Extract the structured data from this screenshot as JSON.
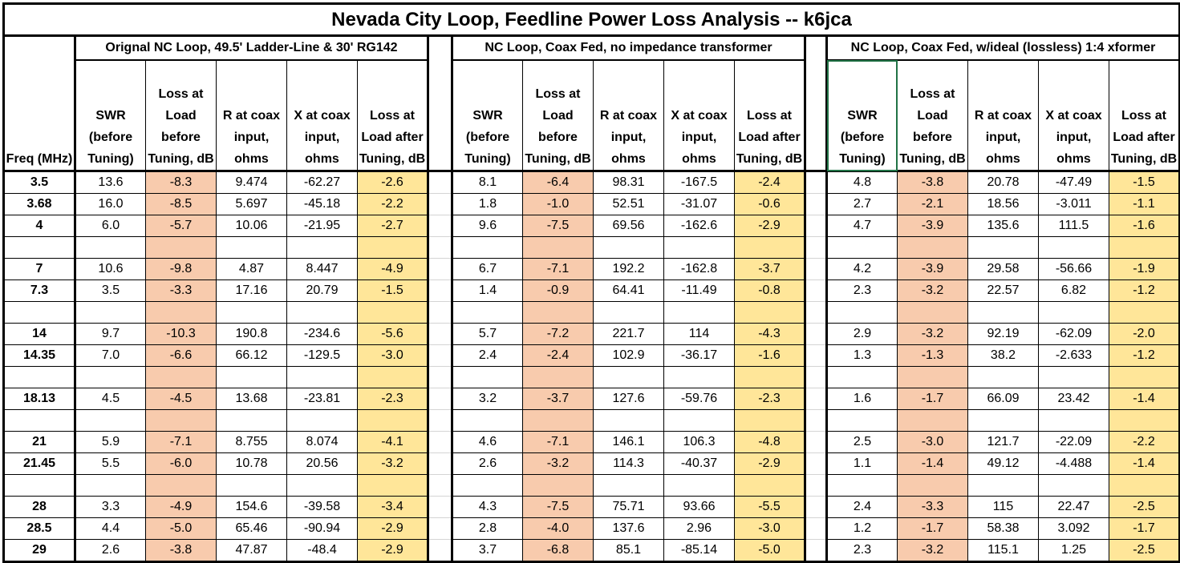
{
  "title": "Nevada City Loop, Feedline Power Loss Analysis  --  k6jca",
  "colors": {
    "loss_before": "#f8cbad",
    "loss_after": "#ffe699",
    "selection": "#217346"
  },
  "groups": [
    "Orignal NC Loop, 49.5' Ladder-Line & 30' RG142",
    "NC Loop, Coax Fed, no impedance transformer",
    "NC Loop, Coax Fed, w/ideal (lossless) 1:4 xformer"
  ],
  "freq_header": "Freq (MHz)",
  "column_headers": [
    "SWR (before Tuning)",
    "Loss at Load before Tuning, dB",
    "R at coax input, ohms",
    "X at coax input, ohms",
    "Loss at Load after Tuning, dB"
  ],
  "rows": [
    {
      "freq": "3.5",
      "g": [
        [
          "13.6",
          "-8.3",
          "9.474",
          "-62.27",
          "-2.6"
        ],
        [
          "8.1",
          "-6.4",
          "98.31",
          "-167.5",
          "-2.4"
        ],
        [
          "4.8",
          "-3.8",
          "20.78",
          "-47.49",
          "-1.5"
        ]
      ]
    },
    {
      "freq": "3.68",
      "g": [
        [
          "16.0",
          "-8.5",
          "5.697",
          "-45.18",
          "-2.2"
        ],
        [
          "1.8",
          "-1.0",
          "52.51",
          "-31.07",
          "-0.6"
        ],
        [
          "2.7",
          "-2.1",
          "18.56",
          "-3.011",
          "-1.1"
        ]
      ]
    },
    {
      "freq": "4",
      "g": [
        [
          "6.0",
          "-5.7",
          "10.06",
          "-21.95",
          "-2.7"
        ],
        [
          "9.6",
          "-7.5",
          "69.56",
          "-162.6",
          "-2.9"
        ],
        [
          "4.7",
          "-3.9",
          "135.6",
          "111.5",
          "-1.6"
        ]
      ]
    },
    {
      "freq": "",
      "g": [
        [
          "",
          "",
          "",
          "",
          ""
        ],
        [
          "",
          "",
          "",
          "",
          ""
        ],
        [
          "",
          "",
          "",
          "",
          ""
        ]
      ]
    },
    {
      "freq": "7",
      "g": [
        [
          "10.6",
          "-9.8",
          "4.87",
          "8.447",
          "-4.9"
        ],
        [
          "6.7",
          "-7.1",
          "192.2",
          "-162.8",
          "-3.7"
        ],
        [
          "4.2",
          "-3.9",
          "29.58",
          "-56.66",
          "-1.9"
        ]
      ]
    },
    {
      "freq": "7.3",
      "g": [
        [
          "3.5",
          "-3.3",
          "17.16",
          "20.79",
          "-1.5"
        ],
        [
          "1.4",
          "-0.9",
          "64.41",
          "-11.49",
          "-0.8"
        ],
        [
          "2.3",
          "-3.2",
          "22.57",
          "6.82",
          "-1.2"
        ]
      ]
    },
    {
      "freq": "",
      "g": [
        [
          "",
          "",
          "",
          "",
          ""
        ],
        [
          "",
          "",
          "",
          "",
          ""
        ],
        [
          "",
          "",
          "",
          "",
          ""
        ]
      ]
    },
    {
      "freq": "14",
      "g": [
        [
          "9.7",
          "-10.3",
          "190.8",
          "-234.6",
          "-5.6"
        ],
        [
          "5.7",
          "-7.2",
          "221.7",
          "114",
          "-4.3"
        ],
        [
          "2.9",
          "-3.2",
          "92.19",
          "-62.09",
          "-2.0"
        ]
      ]
    },
    {
      "freq": "14.35",
      "g": [
        [
          "7.0",
          "-6.6",
          "66.12",
          "-129.5",
          "-3.0"
        ],
        [
          "2.4",
          "-2.4",
          "102.9",
          "-36.17",
          "-1.6"
        ],
        [
          "1.3",
          "-1.3",
          "38.2",
          "-2.633",
          "-1.2"
        ]
      ]
    },
    {
      "freq": "",
      "g": [
        [
          "",
          "",
          "",
          "",
          ""
        ],
        [
          "",
          "",
          "",
          "",
          ""
        ],
        [
          "",
          "",
          "",
          "",
          ""
        ]
      ]
    },
    {
      "freq": "18.13",
      "g": [
        [
          "4.5",
          "-4.5",
          "13.68",
          "-23.81",
          "-2.3"
        ],
        [
          "3.2",
          "-3.7",
          "127.6",
          "-59.76",
          "-2.3"
        ],
        [
          "1.6",
          "-1.7",
          "66.09",
          "23.42",
          "-1.4"
        ]
      ]
    },
    {
      "freq": "",
      "g": [
        [
          "",
          "",
          "",
          "",
          ""
        ],
        [
          "",
          "",
          "",
          "",
          ""
        ],
        [
          "",
          "",
          "",
          "",
          ""
        ]
      ]
    },
    {
      "freq": "21",
      "g": [
        [
          "5.9",
          "-7.1",
          "8.755",
          "8.074",
          "-4.1"
        ],
        [
          "4.6",
          "-7.1",
          "146.1",
          "106.3",
          "-4.8"
        ],
        [
          "2.5",
          "-3.0",
          "121.7",
          "-22.09",
          "-2.2"
        ]
      ]
    },
    {
      "freq": "21.45",
      "g": [
        [
          "5.5",
          "-6.0",
          "10.78",
          "20.56",
          "-3.2"
        ],
        [
          "2.6",
          "-3.2",
          "114.3",
          "-40.37",
          "-2.9"
        ],
        [
          "1.1",
          "-1.4",
          "49.12",
          "-4.488",
          "-1.4"
        ]
      ]
    },
    {
      "freq": "",
      "g": [
        [
          "",
          "",
          "",
          "",
          ""
        ],
        [
          "",
          "",
          "",
          "",
          ""
        ],
        [
          "",
          "",
          "",
          "",
          ""
        ]
      ]
    },
    {
      "freq": "28",
      "g": [
        [
          "3.3",
          "-4.9",
          "154.6",
          "-39.58",
          "-3.4"
        ],
        [
          "4.3",
          "-7.5",
          "75.71",
          "93.66",
          "-5.5"
        ],
        [
          "2.4",
          "-3.3",
          "115",
          "22.47",
          "-2.5"
        ]
      ]
    },
    {
      "freq": "28.5",
      "g": [
        [
          "4.4",
          "-5.0",
          "65.46",
          "-90.94",
          "-2.9"
        ],
        [
          "2.8",
          "-4.0",
          "137.6",
          "2.96",
          "-3.0"
        ],
        [
          "1.2",
          "-1.7",
          "58.38",
          "3.092",
          "-1.7"
        ]
      ]
    },
    {
      "freq": "29",
      "g": [
        [
          "2.6",
          "-3.8",
          "47.87",
          "-48.4",
          "-2.9"
        ],
        [
          "3.7",
          "-6.8",
          "85.1",
          "-85.14",
          "-5.0"
        ],
        [
          "2.3",
          "-3.2",
          "115.1",
          "1.25",
          "-2.5"
        ]
      ]
    }
  ]
}
